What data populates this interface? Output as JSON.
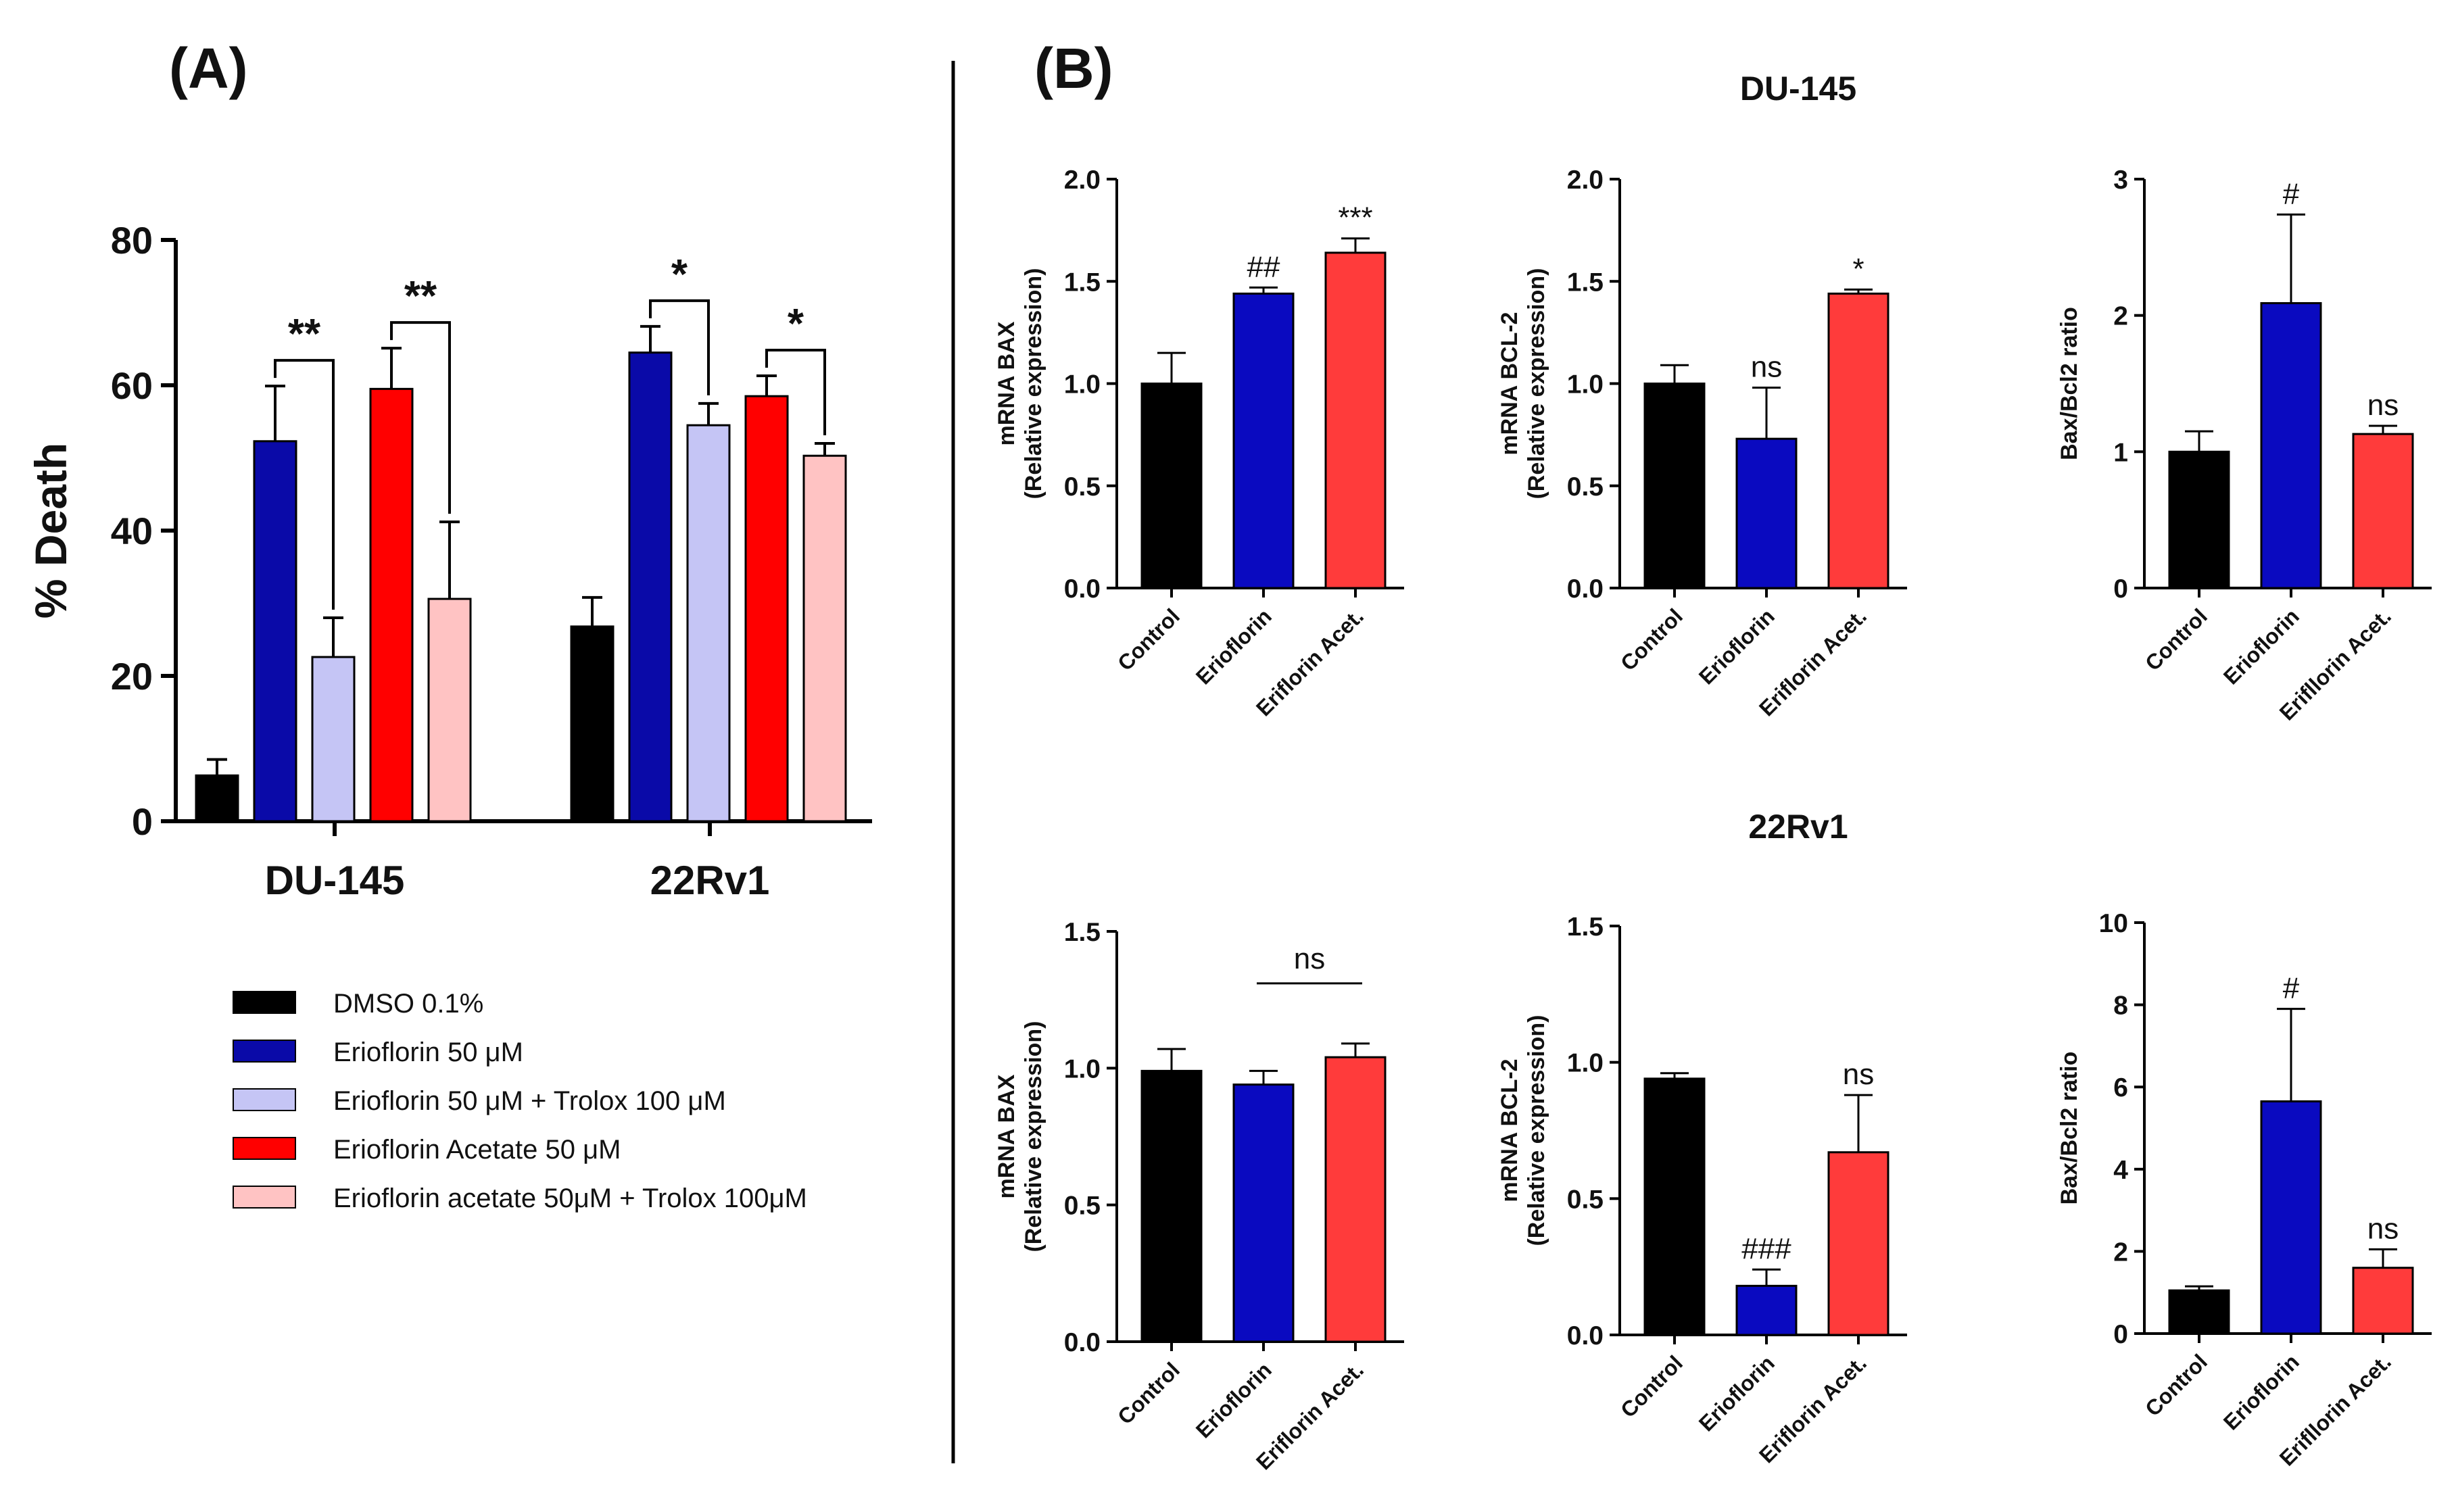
{
  "panels": {
    "a_label": "(A)",
    "b_label": "(B)"
  },
  "colors": {
    "dmso": "#000000",
    "erio": "#0a0aa8",
    "erio_trolox": "#c5c5f5",
    "acetate": "#ff0000",
    "acetate_trolox": "#ffc3c3",
    "control_b": "#000000",
    "erio_b": "#0a0ac0",
    "acet_b": "#ff3b3b"
  },
  "chart_data": [
    {
      "id": "A",
      "type": "bar",
      "title": "(A)",
      "xlabel": "",
      "ylabel": "% Death",
      "ylim": [
        0,
        80
      ],
      "yticks": [
        "0",
        "20",
        "40",
        "60",
        "80"
      ],
      "categories": [
        "DU-145",
        "22Rv1"
      ],
      "series": [
        {
          "name": "DMSO 0.1%",
          "color_key": "dmso",
          "values": [
            6.3,
            26.8
          ],
          "errors": [
            2.2,
            4.0
          ]
        },
        {
          "name": "Erioflorin 50 μM",
          "color_key": "erio",
          "values": [
            52.3,
            64.5
          ],
          "errors": [
            7.6,
            3.6
          ]
        },
        {
          "name": "Erioflorin 50 μM  + Trolox 100 μM",
          "color_key": "erio_trolox",
          "values": [
            22.6,
            54.5
          ],
          "errors": [
            5.4,
            3.0
          ]
        },
        {
          "name": "Erioflorin Acetate 50 μM",
          "color_key": "acetate",
          "values": [
            59.5,
            58.5
          ],
          "errors": [
            5.6,
            2.8
          ]
        },
        {
          "name": "Erioflorin acetate 50μM + Trolox 100μM",
          "color_key": "acetate_trolox",
          "values": [
            30.6,
            50.3
          ],
          "errors": [
            10.6,
            1.7
          ]
        }
      ],
      "significance": [
        {
          "group": 0,
          "from_series": 1,
          "to_series": 2,
          "label": "**"
        },
        {
          "group": 0,
          "from_series": 3,
          "to_series": 4,
          "label": "**"
        },
        {
          "group": 1,
          "from_series": 1,
          "to_series": 2,
          "label": "*"
        },
        {
          "group": 1,
          "from_series": 3,
          "to_series": 4,
          "label": "*"
        }
      ],
      "legend_position": "below"
    },
    {
      "id": "B1",
      "type": "bar",
      "title": "DU-145",
      "ylabel_line1": "mRNA BAX",
      "ylabel_line2": "(Relative expression)",
      "ylim": [
        0,
        2.0
      ],
      "yticks": [
        "0.0",
        "0.5",
        "1.0",
        "1.5",
        "2.0"
      ],
      "categories": [
        "Control",
        "Erioflorin",
        "Eriflorin Acet."
      ],
      "values": [
        1.0,
        1.44,
        1.64
      ],
      "errors": [
        0.15,
        0.03,
        0.07
      ],
      "labels": [
        "",
        "##",
        "***"
      ]
    },
    {
      "id": "B2",
      "type": "bar",
      "title": "DU-145",
      "ylabel_line1": "mRNA BCL-2",
      "ylabel_line2": "(Relative expression)",
      "ylim": [
        0,
        2.0
      ],
      "yticks": [
        "0.0",
        "0.5",
        "1.0",
        "1.5",
        "2.0"
      ],
      "categories": [
        "Control",
        "Erioflorin",
        "Eriflorin Acet."
      ],
      "values": [
        1.0,
        0.73,
        1.44
      ],
      "errors": [
        0.09,
        0.25,
        0.02
      ],
      "labels": [
        "",
        "ns",
        "*"
      ]
    },
    {
      "id": "B3",
      "type": "bar",
      "title": "DU-145",
      "ylabel_line1": "Bax/Bcl2 ratio",
      "ylabel_line2": "",
      "ylim": [
        0,
        3
      ],
      "yticks": [
        "0",
        "1",
        "2",
        "3"
      ],
      "categories": [
        "Control",
        "Erioflorin",
        "Erifllorin Acet."
      ],
      "values": [
        1.0,
        2.09,
        1.13
      ],
      "errors": [
        0.15,
        0.65,
        0.06
      ],
      "labels": [
        "",
        "#",
        "ns"
      ]
    },
    {
      "id": "B4",
      "type": "bar",
      "title": "22Rv1",
      "ylabel_line1": "mRNA BAX",
      "ylabel_line2": "(Relative expression)",
      "ylim": [
        0,
        1.5
      ],
      "yticks": [
        "0.0",
        "0.5",
        "1.0",
        "1.5"
      ],
      "categories": [
        "Control",
        "Erioflorin",
        "Eriflorin Acet."
      ],
      "values": [
        0.99,
        0.94,
        1.04
      ],
      "errors": [
        0.08,
        0.05,
        0.05
      ],
      "labels": [
        "",
        "",
        ""
      ],
      "bracket_label": "ns"
    },
    {
      "id": "B5",
      "type": "bar",
      "title": "22Rv1",
      "ylabel_line1": "mRNA BCL-2",
      "ylabel_line2": "(Relative expression)",
      "ylim": [
        0,
        1.5
      ],
      "yticks": [
        "0.0",
        "0.5",
        "1.0",
        "1.5"
      ],
      "categories": [
        "Control",
        "Erioflorin",
        "Eriflorin Acet."
      ],
      "values": [
        0.94,
        0.18,
        0.67
      ],
      "errors": [
        0.02,
        0.06,
        0.21
      ],
      "labels": [
        "",
        "###",
        "ns"
      ]
    },
    {
      "id": "B6",
      "type": "bar",
      "title": "22Rv1",
      "ylabel_line1": "Bax/Bcl2 ratio",
      "ylabel_line2": "",
      "ylim": [
        0,
        10
      ],
      "yticks": [
        "0",
        "2",
        "4",
        "6",
        "8",
        "10"
      ],
      "categories": [
        "Control",
        "Erioflorin",
        "Erifllorin Acet."
      ],
      "values": [
        1.05,
        5.65,
        1.6
      ],
      "errors": [
        0.1,
        2.25,
        0.45
      ],
      "labels": [
        "",
        "#",
        "ns"
      ]
    }
  ]
}
